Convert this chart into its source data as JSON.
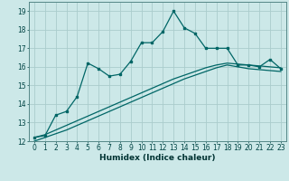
{
  "xlabel": "Humidex (Indice chaleur)",
  "background_color": "#cce8e8",
  "grid_color": "#aacccc",
  "line_color": "#006666",
  "x_main": [
    0,
    1,
    2,
    3,
    4,
    5,
    6,
    7,
    8,
    9,
    10,
    11,
    12,
    13,
    14,
    15,
    16,
    17,
    18,
    19,
    20,
    21,
    22,
    23
  ],
  "y_main": [
    12.2,
    12.3,
    13.4,
    13.6,
    14.4,
    16.2,
    15.9,
    15.5,
    15.6,
    16.3,
    17.3,
    17.3,
    17.9,
    19.0,
    18.1,
    17.8,
    17.0,
    17.0,
    17.0,
    16.1,
    16.1,
    16.0,
    16.4,
    15.9
  ],
  "y_trend1": [
    12.2,
    12.35,
    12.6,
    12.85,
    13.1,
    13.35,
    13.6,
    13.85,
    14.1,
    14.35,
    14.6,
    14.85,
    15.1,
    15.35,
    15.55,
    15.75,
    15.95,
    16.1,
    16.2,
    16.15,
    16.1,
    16.05,
    16.0,
    15.95
  ],
  "y_trend2": [
    12.0,
    12.2,
    12.4,
    12.6,
    12.85,
    13.1,
    13.35,
    13.6,
    13.85,
    14.1,
    14.35,
    14.6,
    14.85,
    15.1,
    15.35,
    15.55,
    15.75,
    15.95,
    16.1,
    16.0,
    15.9,
    15.85,
    15.8,
    15.75
  ],
  "ylim": [
    12,
    19.5
  ],
  "xlim": [
    -0.5,
    23.5
  ],
  "yticks": [
    12,
    13,
    14,
    15,
    16,
    17,
    18,
    19
  ],
  "xticks": [
    0,
    1,
    2,
    3,
    4,
    5,
    6,
    7,
    8,
    9,
    10,
    11,
    12,
    13,
    14,
    15,
    16,
    17,
    18,
    19,
    20,
    21,
    22,
    23
  ],
  "tick_fontsize": 5.5,
  "xlabel_fontsize": 6.5
}
